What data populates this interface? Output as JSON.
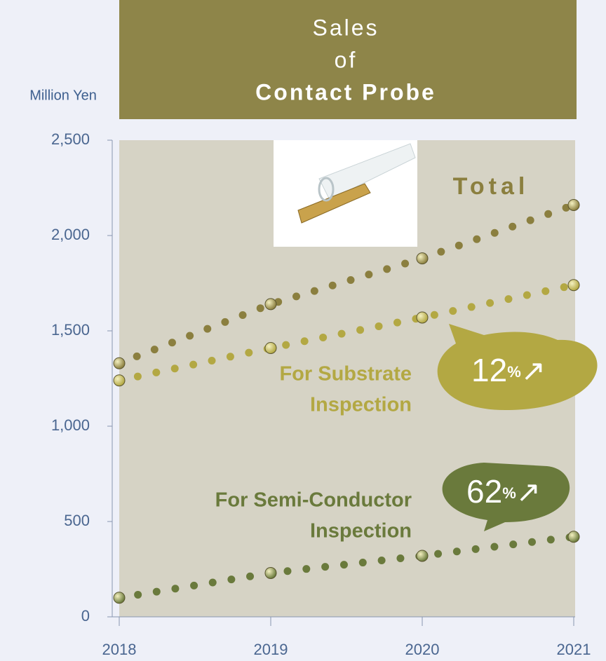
{
  "chart_data": {
    "type": "line",
    "title": [
      "Sales",
      "of",
      "Contact Probe"
    ],
    "y_label": "Million Yen",
    "categories": [
      "2018",
      "2019",
      "2020",
      "2021"
    ],
    "ylim": [
      0,
      2500
    ],
    "yticks": [
      0,
      500,
      {
        "value": 1000,
        "label": "1,000"
      },
      {
        "value": 1500,
        "label": "1,500"
      },
      {
        "value": 2000,
        "label": "2,000"
      },
      {
        "value": 2500,
        "label": "2,500"
      }
    ],
    "series": [
      {
        "label": [
          "Total"
        ],
        "color": "#8b7f3f",
        "values": [
          1330,
          1640,
          1880,
          2160
        ]
      },
      {
        "label": [
          "For Substrate",
          "Inspection"
        ],
        "color": "#b3a843",
        "values": [
          1240,
          1410,
          1570,
          1740
        ]
      },
      {
        "label": [
          "For Semi-Conductor",
          "Inspection"
        ],
        "color": "#6a7a3c",
        "values": [
          100,
          230,
          320,
          420
        ]
      }
    ],
    "bubbles": [
      {
        "number": "12",
        "unit": "%",
        "arrow": "↗",
        "color": "#b3a843"
      },
      {
        "number": "62",
        "unit": "%",
        "arrow": "↗",
        "color": "#6a7a3c"
      }
    ]
  }
}
